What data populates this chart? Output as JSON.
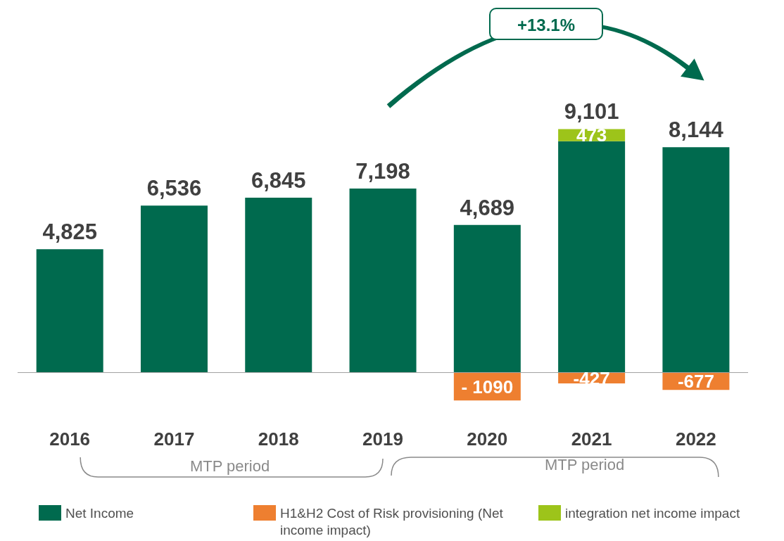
{
  "chart_data": {
    "type": "bar",
    "stacked": true,
    "categories": [
      "2016",
      "2017",
      "2018",
      "2019",
      "2020",
      "2021",
      "2022"
    ],
    "series": [
      {
        "name": "Net Income",
        "color": "#006a4e",
        "values": [
          4825,
          6536,
          6845,
          7198,
          5779,
          9055,
          8821
        ]
      },
      {
        "name": "H1&H2 Cost of Risk provisioning (Net income impact)",
        "color": "#ee7f30",
        "values": [
          null,
          null,
          null,
          null,
          -1090,
          -427,
          -677
        ],
        "value_labels": [
          null,
          null,
          null,
          null,
          "- 1090",
          "-427",
          "-677"
        ]
      },
      {
        "name": "integration net income impact",
        "color": "#9dc41a",
        "values": [
          null,
          null,
          null,
          null,
          null,
          473,
          null
        ],
        "value_labels": [
          null,
          null,
          null,
          null,
          null,
          "473",
          null
        ]
      }
    ],
    "totals": [
      "4,825",
      "6,536",
      "6,845",
      "7,198",
      "4,689",
      "9,101",
      "8,144"
    ],
    "legend": "bottom",
    "annotations": [
      "+13.1%",
      "MTP period",
      "MTP period"
    ]
  }
}
